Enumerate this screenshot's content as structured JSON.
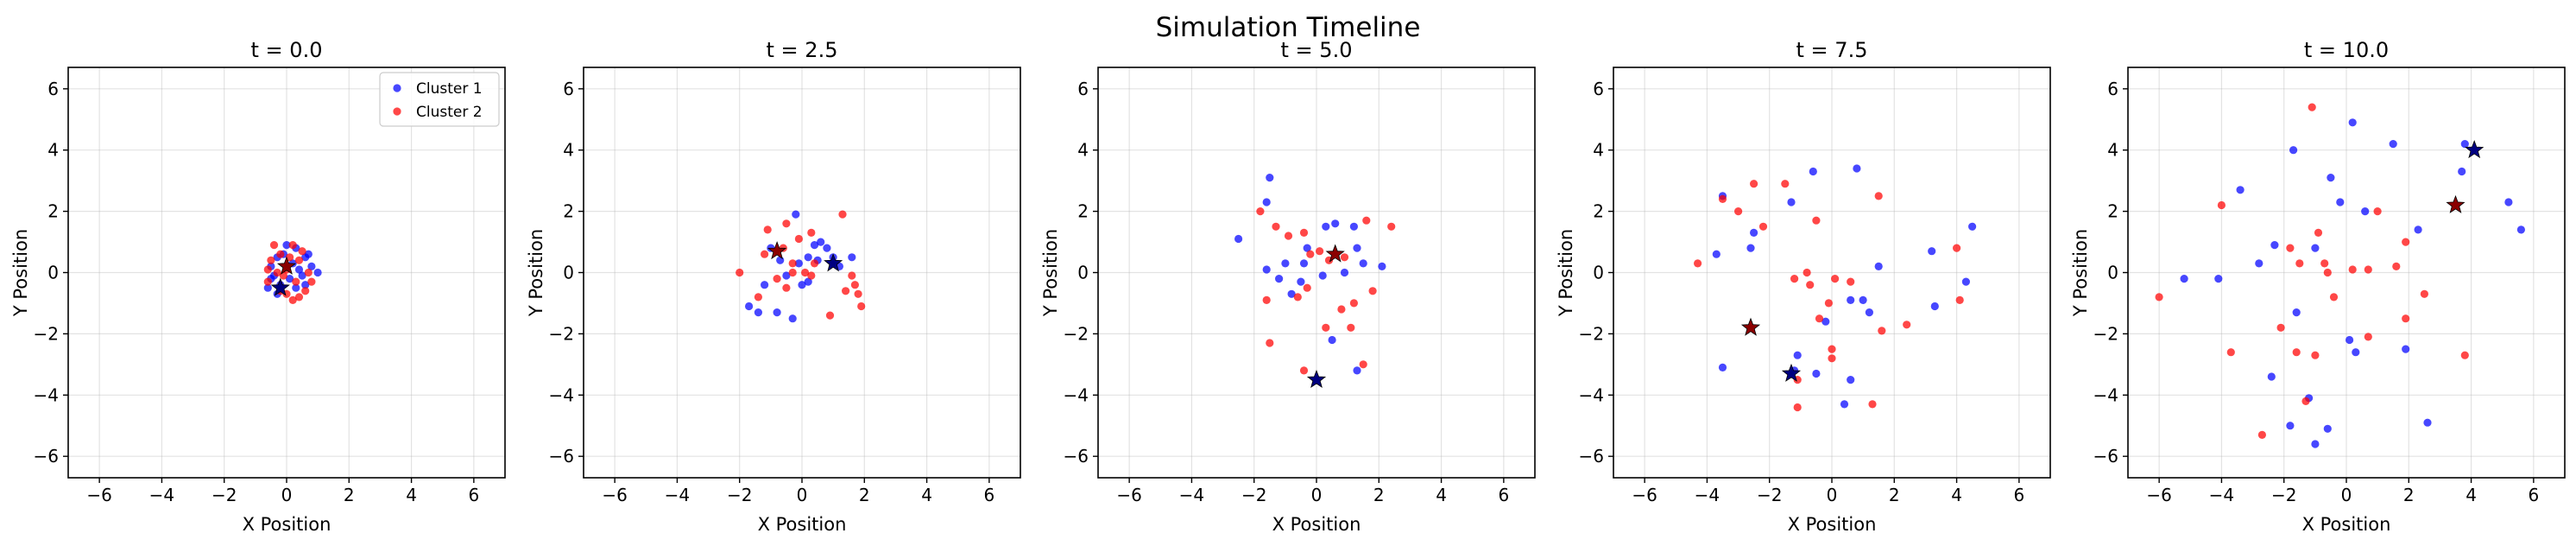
{
  "figure_title": "Simulation Timeline",
  "colors": {
    "cluster1": "#0000ff",
    "cluster2": "#ff0000",
    "center1": "#000080",
    "center2": "#8b0000"
  },
  "chart_data": [
    {
      "type": "scatter",
      "title": "t = 0.0",
      "xlabel": "X Position",
      "ylabel": "Y Position",
      "xlim": [
        -7,
        7
      ],
      "ylim": [
        -6.7,
        6.7
      ],
      "xticks": [
        -6,
        -4,
        -2,
        0,
        2,
        4,
        6
      ],
      "yticks": [
        -6,
        -4,
        -2,
        0,
        2,
        4,
        6
      ],
      "grid": true,
      "legend": "top-right",
      "series": [
        {
          "name": "Cluster 1",
          "color": "#0000ff",
          "points": [
            [
              -0.3,
              0.5
            ],
            [
              -0.5,
              0.2
            ],
            [
              0.0,
              0.9
            ],
            [
              0.3,
              0.8
            ],
            [
              0.6,
              0.5
            ],
            [
              -0.4,
              -0.1
            ],
            [
              0.1,
              -0.2
            ],
            [
              0.5,
              -0.1
            ],
            [
              0.8,
              0.2
            ],
            [
              1.0,
              0.0
            ],
            [
              -0.2,
              -0.4
            ],
            [
              0.3,
              -0.5
            ],
            [
              -0.6,
              -0.5
            ],
            [
              0.2,
              0.3
            ],
            [
              -0.1,
              0.6
            ],
            [
              0.6,
              -0.4
            ],
            [
              -0.3,
              -0.7
            ],
            [
              0.4,
              0.1
            ],
            [
              0.7,
              0.6
            ],
            [
              -0.5,
              -0.2
            ]
          ]
        },
        {
          "name": "Cluster 2",
          "color": "#ff0000",
          "points": [
            [
              -0.4,
              0.9
            ],
            [
              -0.2,
              0.6
            ],
            [
              0.1,
              0.5
            ],
            [
              0.4,
              0.4
            ],
            [
              -0.6,
              0.1
            ],
            [
              0.0,
              0.1
            ],
            [
              0.3,
              -0.3
            ],
            [
              0.6,
              -0.6
            ],
            [
              0.2,
              -0.9
            ],
            [
              -0.2,
              -0.6
            ],
            [
              -0.5,
              0.4
            ],
            [
              0.7,
              0.0
            ],
            [
              0.5,
              0.7
            ],
            [
              -0.3,
              0.0
            ],
            [
              0.2,
              0.9
            ],
            [
              0.8,
              -0.3
            ],
            [
              -0.1,
              -0.1
            ],
            [
              0.0,
              -0.7
            ],
            [
              0.4,
              -0.8
            ],
            [
              -0.6,
              -0.3
            ]
          ]
        }
      ],
      "centers": [
        {
          "name": "Cluster 1 center",
          "color": "#000080",
          "x": -0.2,
          "y": -0.5
        },
        {
          "name": "Cluster 2 center",
          "color": "#8b0000",
          "x": 0.0,
          "y": 0.2
        }
      ]
    },
    {
      "type": "scatter",
      "title": "t = 2.5",
      "xlabel": "X Position",
      "ylabel": "Y Position",
      "xlim": [
        -7,
        7
      ],
      "ylim": [
        -6.7,
        6.7
      ],
      "xticks": [
        -6,
        -4,
        -2,
        0,
        2,
        4,
        6
      ],
      "yticks": [
        -6,
        -4,
        -2,
        0,
        2,
        4,
        6
      ],
      "grid": true,
      "series": [
        {
          "name": "Cluster 1",
          "color": "#0000ff",
          "points": [
            [
              -1.4,
              -1.3
            ],
            [
              -1.2,
              -0.4
            ],
            [
              -1.7,
              -1.1
            ],
            [
              -0.8,
              -1.3
            ],
            [
              -0.3,
              -1.5
            ],
            [
              -0.5,
              -0.1
            ],
            [
              0.2,
              -0.3
            ],
            [
              0.4,
              0.9
            ],
            [
              0.8,
              0.8
            ],
            [
              1.2,
              0.2
            ],
            [
              1.6,
              0.5
            ],
            [
              0.0,
              -0.4
            ],
            [
              -0.2,
              1.9
            ],
            [
              0.5,
              0.4
            ],
            [
              -0.7,
              0.4
            ],
            [
              0.2,
              0.5
            ],
            [
              -0.1,
              0.3
            ],
            [
              1.0,
              0.5
            ],
            [
              0.6,
              1.0
            ],
            [
              -1.0,
              0.8
            ]
          ]
        },
        {
          "name": "Cluster 2",
          "color": "#ff0000",
          "points": [
            [
              -2.0,
              0.0
            ],
            [
              -1.4,
              -0.8
            ],
            [
              -0.5,
              -0.5
            ],
            [
              -0.3,
              0.3
            ],
            [
              -0.5,
              1.6
            ],
            [
              -1.2,
              0.6
            ],
            [
              -0.8,
              -0.2
            ],
            [
              0.3,
              1.3
            ],
            [
              0.3,
              -0.1
            ],
            [
              0.1,
              0.0
            ],
            [
              -0.3,
              0.0
            ],
            [
              1.3,
              1.9
            ],
            [
              1.6,
              -0.1
            ],
            [
              1.8,
              -0.7
            ],
            [
              1.9,
              -1.1
            ],
            [
              1.7,
              -0.4
            ],
            [
              0.9,
              -1.4
            ],
            [
              1.4,
              -0.6
            ],
            [
              0.4,
              0.3
            ],
            [
              -0.1,
              1.1
            ],
            [
              -1.1,
              1.4
            ],
            [
              -0.6,
              0.8
            ]
          ]
        }
      ],
      "centers": [
        {
          "name": "Cluster 1 center",
          "color": "#000080",
          "x": 1.0,
          "y": 0.3
        },
        {
          "name": "Cluster 2 center",
          "color": "#8b0000",
          "x": -0.8,
          "y": 0.7
        }
      ]
    },
    {
      "type": "scatter",
      "title": "t = 5.0",
      "xlabel": "X Position",
      "ylabel": "Y Position",
      "xlim": [
        -7,
        7
      ],
      "ylim": [
        -6.7,
        6.7
      ],
      "xticks": [
        -6,
        -4,
        -2,
        0,
        2,
        4,
        6
      ],
      "yticks": [
        -6,
        -4,
        -2,
        0,
        2,
        4,
        6
      ],
      "grid": true,
      "series": [
        {
          "name": "Cluster 1",
          "color": "#0000ff",
          "points": [
            [
              -1.5,
              3.1
            ],
            [
              -1.6,
              2.3
            ],
            [
              -2.5,
              1.1
            ],
            [
              -1.0,
              0.3
            ],
            [
              -1.2,
              -0.2
            ],
            [
              -0.8,
              -0.7
            ],
            [
              -0.4,
              0.3
            ],
            [
              -0.3,
              0.8
            ],
            [
              0.3,
              1.5
            ],
            [
              0.6,
              1.6
            ],
            [
              1.2,
              1.5
            ],
            [
              1.3,
              0.8
            ],
            [
              1.5,
              0.3
            ],
            [
              2.1,
              0.2
            ],
            [
              0.9,
              0.0
            ],
            [
              0.2,
              -0.1
            ],
            [
              -1.6,
              0.1
            ],
            [
              0.5,
              -2.2
            ],
            [
              1.3,
              -3.2
            ],
            [
              -0.5,
              -0.3
            ]
          ]
        },
        {
          "name": "Cluster 2",
          "color": "#ff0000",
          "points": [
            [
              -1.8,
              2.0
            ],
            [
              -1.6,
              -0.9
            ],
            [
              -1.5,
              -2.3
            ],
            [
              -1.3,
              1.5
            ],
            [
              -0.9,
              1.2
            ],
            [
              -0.4,
              1.3
            ],
            [
              -0.3,
              -0.5
            ],
            [
              0.1,
              0.7
            ],
            [
              0.4,
              0.4
            ],
            [
              0.9,
              0.5
            ],
            [
              1.6,
              1.7
            ],
            [
              2.4,
              1.5
            ],
            [
              1.8,
              -0.6
            ],
            [
              1.2,
              -1.0
            ],
            [
              0.8,
              -1.2
            ],
            [
              1.1,
              -1.8
            ],
            [
              1.5,
              -3.0
            ],
            [
              0.3,
              -1.8
            ],
            [
              -0.4,
              -3.2
            ],
            [
              -0.2,
              0.6
            ],
            [
              -0.6,
              -0.8
            ]
          ]
        }
      ],
      "centers": [
        {
          "name": "Cluster 1 center",
          "color": "#000080",
          "x": 0.0,
          "y": -3.5
        },
        {
          "name": "Cluster 2 center",
          "color": "#8b0000",
          "x": 0.6,
          "y": 0.6
        }
      ]
    },
    {
      "type": "scatter",
      "title": "t = 7.5",
      "xlabel": "X Position",
      "ylabel": "Y Position",
      "xlim": [
        -7,
        7
      ],
      "ylim": [
        -6.7,
        6.7
      ],
      "xticks": [
        -6,
        -4,
        -2,
        0,
        2,
        4,
        6
      ],
      "yticks": [
        -6,
        -4,
        -2,
        0,
        2,
        4,
        6
      ],
      "grid": true,
      "series": [
        {
          "name": "Cluster 1",
          "color": "#0000ff",
          "points": [
            [
              -3.7,
              0.6
            ],
            [
              -3.5,
              -3.1
            ],
            [
              -3.5,
              2.5
            ],
            [
              -2.6,
              0.8
            ],
            [
              -2.5,
              1.3
            ],
            [
              -1.3,
              2.3
            ],
            [
              -0.6,
              3.3
            ],
            [
              0.8,
              3.4
            ],
            [
              -1.1,
              -2.7
            ],
            [
              -1.2,
              -3.2
            ],
            [
              -0.5,
              -3.3
            ],
            [
              0.4,
              -4.3
            ],
            [
              0.6,
              -3.5
            ],
            [
              0.6,
              -0.9
            ],
            [
              1.0,
              -0.9
            ],
            [
              1.5,
              0.2
            ],
            [
              1.2,
              -1.3
            ],
            [
              3.2,
              0.7
            ],
            [
              3.3,
              -1.1
            ],
            [
              4.3,
              -0.3
            ],
            [
              4.5,
              1.5
            ],
            [
              -0.2,
              -1.6
            ]
          ]
        },
        {
          "name": "Cluster 2",
          "color": "#ff0000",
          "points": [
            [
              -4.3,
              0.3
            ],
            [
              -3.5,
              2.4
            ],
            [
              -3.0,
              2.0
            ],
            [
              -2.5,
              2.9
            ],
            [
              -2.2,
              1.5
            ],
            [
              -1.5,
              2.9
            ],
            [
              -1.2,
              -0.2
            ],
            [
              -0.5,
              1.7
            ],
            [
              -0.4,
              -1.5
            ],
            [
              -0.1,
              -1.0
            ],
            [
              0.0,
              -2.8
            ],
            [
              0.0,
              -2.5
            ],
            [
              -0.8,
              0.0
            ],
            [
              -0.7,
              -0.4
            ],
            [
              -1.1,
              -3.5
            ],
            [
              -1.1,
              -4.4
            ],
            [
              1.3,
              -4.3
            ],
            [
              1.6,
              -1.9
            ],
            [
              1.5,
              2.5
            ],
            [
              2.4,
              -1.7
            ],
            [
              4.0,
              0.8
            ],
            [
              4.1,
              -0.9
            ],
            [
              0.6,
              -0.3
            ],
            [
              0.1,
              -0.2
            ]
          ]
        }
      ],
      "centers": [
        {
          "name": "Cluster 1 center",
          "color": "#000080",
          "x": -1.3,
          "y": -3.3
        },
        {
          "name": "Cluster 2 center",
          "color": "#8b0000",
          "x": -2.6,
          "y": -1.8
        }
      ]
    },
    {
      "type": "scatter",
      "title": "t = 10.0",
      "xlabel": "X Position",
      "ylabel": "Y Position",
      "xlim": [
        -7,
        7
      ],
      "ylim": [
        -6.7,
        6.7
      ],
      "xticks": [
        -6,
        -4,
        -2,
        0,
        2,
        4,
        6
      ],
      "yticks": [
        -6,
        -4,
        -2,
        0,
        2,
        4,
        6
      ],
      "grid": true,
      "series": [
        {
          "name": "Cluster 1",
          "color": "#0000ff",
          "points": [
            [
              -5.2,
              -0.2
            ],
            [
              -4.1,
              -0.2
            ],
            [
              -3.4,
              2.7
            ],
            [
              -2.8,
              0.3
            ],
            [
              -2.3,
              0.9
            ],
            [
              -1.7,
              4.0
            ],
            [
              -1.0,
              0.8
            ],
            [
              -0.5,
              3.1
            ],
            [
              -0.2,
              2.3
            ],
            [
              0.2,
              4.9
            ],
            [
              0.6,
              2.0
            ],
            [
              1.5,
              4.2
            ],
            [
              2.3,
              1.4
            ],
            [
              3.7,
              3.3
            ],
            [
              3.8,
              4.2
            ],
            [
              5.2,
              2.3
            ],
            [
              5.6,
              1.4
            ],
            [
              -1.0,
              -5.6
            ],
            [
              -1.2,
              -4.1
            ],
            [
              -1.6,
              -1.3
            ],
            [
              -0.6,
              -5.1
            ],
            [
              0.1,
              -2.2
            ],
            [
              1.9,
              -2.5
            ],
            [
              2.6,
              -4.9
            ],
            [
              0.3,
              -2.6
            ],
            [
              -2.4,
              -3.4
            ],
            [
              -1.8,
              -5.0
            ]
          ]
        },
        {
          "name": "Cluster 2",
          "color": "#ff0000",
          "points": [
            [
              -6.0,
              -0.8
            ],
            [
              -4.0,
              2.2
            ],
            [
              -3.7,
              -2.6
            ],
            [
              -2.7,
              -5.3
            ],
            [
              -2.1,
              -1.8
            ],
            [
              -1.6,
              -2.6
            ],
            [
              -1.5,
              0.3
            ],
            [
              -1.1,
              5.4
            ],
            [
              -0.9,
              1.3
            ],
            [
              -0.7,
              0.3
            ],
            [
              -0.4,
              -0.8
            ],
            [
              0.2,
              0.1
            ],
            [
              1.0,
              2.0
            ],
            [
              1.6,
              0.2
            ],
            [
              1.9,
              -1.5
            ],
            [
              1.9,
              1.0
            ],
            [
              2.5,
              -0.7
            ],
            [
              3.8,
              -2.7
            ],
            [
              0.7,
              -2.1
            ],
            [
              -1.0,
              -2.7
            ],
            [
              -1.3,
              -4.2
            ],
            [
              -0.6,
              0.0
            ],
            [
              0.7,
              0.1
            ],
            [
              -1.8,
              0.8
            ]
          ]
        }
      ],
      "centers": [
        {
          "name": "Cluster 1 center",
          "color": "#000080",
          "x": 4.1,
          "y": 4.0
        },
        {
          "name": "Cluster 2 center",
          "color": "#8b0000",
          "x": 3.5,
          "y": 2.2
        }
      ]
    }
  ]
}
